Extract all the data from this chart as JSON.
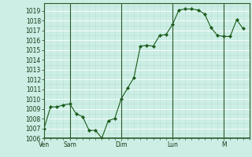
{
  "bg_color": "#cceee4",
  "line_color": "#1a5c1a",
  "marker_color": "#1a5c1a",
  "grid_major_color": "#ffffff",
  "grid_minor_color": "#b8ddd6",
  "axis_label_color": "#1a3a1a",
  "spine_color": "#2a5a2a",
  "ylim": [
    1006,
    1019.8
  ],
  "yticks": [
    1006,
    1007,
    1008,
    1009,
    1010,
    1011,
    1012,
    1013,
    1014,
    1015,
    1016,
    1017,
    1018,
    1019
  ],
  "day_labels": [
    "Ven",
    "Sam",
    "Dim",
    "Lun",
    "M"
  ],
  "day_positions": [
    0,
    24,
    72,
    120,
    168
  ],
  "xlim": [
    0,
    192
  ],
  "x_values": [
    0,
    6,
    12,
    18,
    24,
    30,
    36,
    42,
    48,
    54,
    60,
    66,
    72,
    78,
    84,
    90,
    96,
    102,
    108,
    114,
    120,
    126,
    132,
    138,
    144,
    150,
    156,
    162,
    168,
    174,
    180,
    186
  ],
  "y_values": [
    1007.0,
    1009.2,
    1009.2,
    1009.4,
    1009.5,
    1008.5,
    1008.2,
    1006.8,
    1006.8,
    1006.0,
    1007.8,
    1008.0,
    1010.0,
    1011.1,
    1012.2,
    1015.4,
    1015.5,
    1015.4,
    1016.5,
    1016.6,
    1017.6,
    1019.1,
    1019.2,
    1019.2,
    1019.1,
    1018.7,
    1017.3,
    1016.5,
    1016.4,
    1016.4,
    1018.1,
    1017.2
  ]
}
